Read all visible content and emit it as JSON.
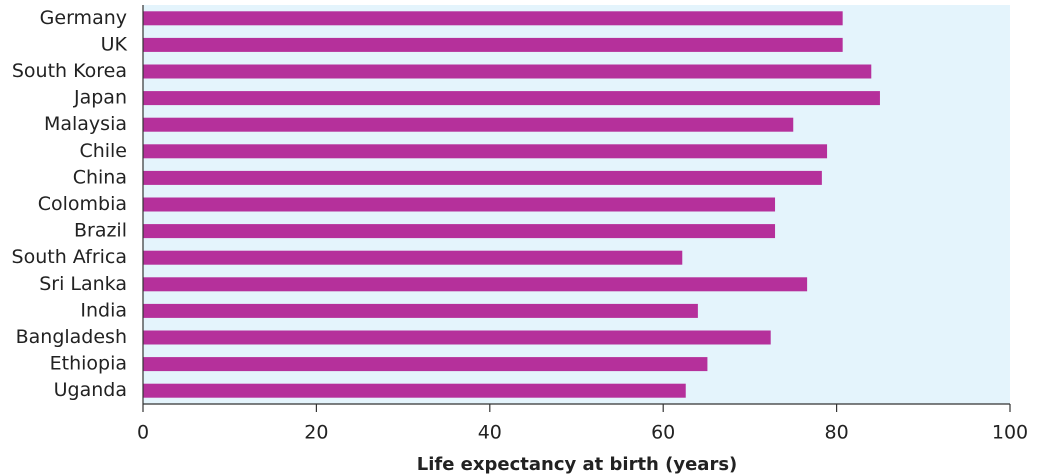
{
  "chart_data": {
    "type": "barh",
    "xlabel": "Life expectancy at birth (years)",
    "categories": [
      "Germany",
      "UK",
      "South Korea",
      "Japan",
      "Malaysia",
      "Chile",
      "China",
      "Colombia",
      "Brazil",
      "South Africa",
      "Sri Lanka",
      "India",
      "Bangladesh",
      "Ethiopia",
      "Uganda"
    ],
    "values": [
      80.7,
      80.7,
      84.0,
      85.0,
      75.0,
      78.9,
      78.3,
      72.9,
      72.9,
      62.2,
      76.6,
      64.0,
      72.4,
      65.1,
      62.6
    ],
    "color": "#b5309b",
    "background": "#e4f4fc",
    "xlim": [
      0,
      100
    ],
    "xticks": [
      0,
      20,
      40,
      60,
      80,
      100
    ]
  }
}
